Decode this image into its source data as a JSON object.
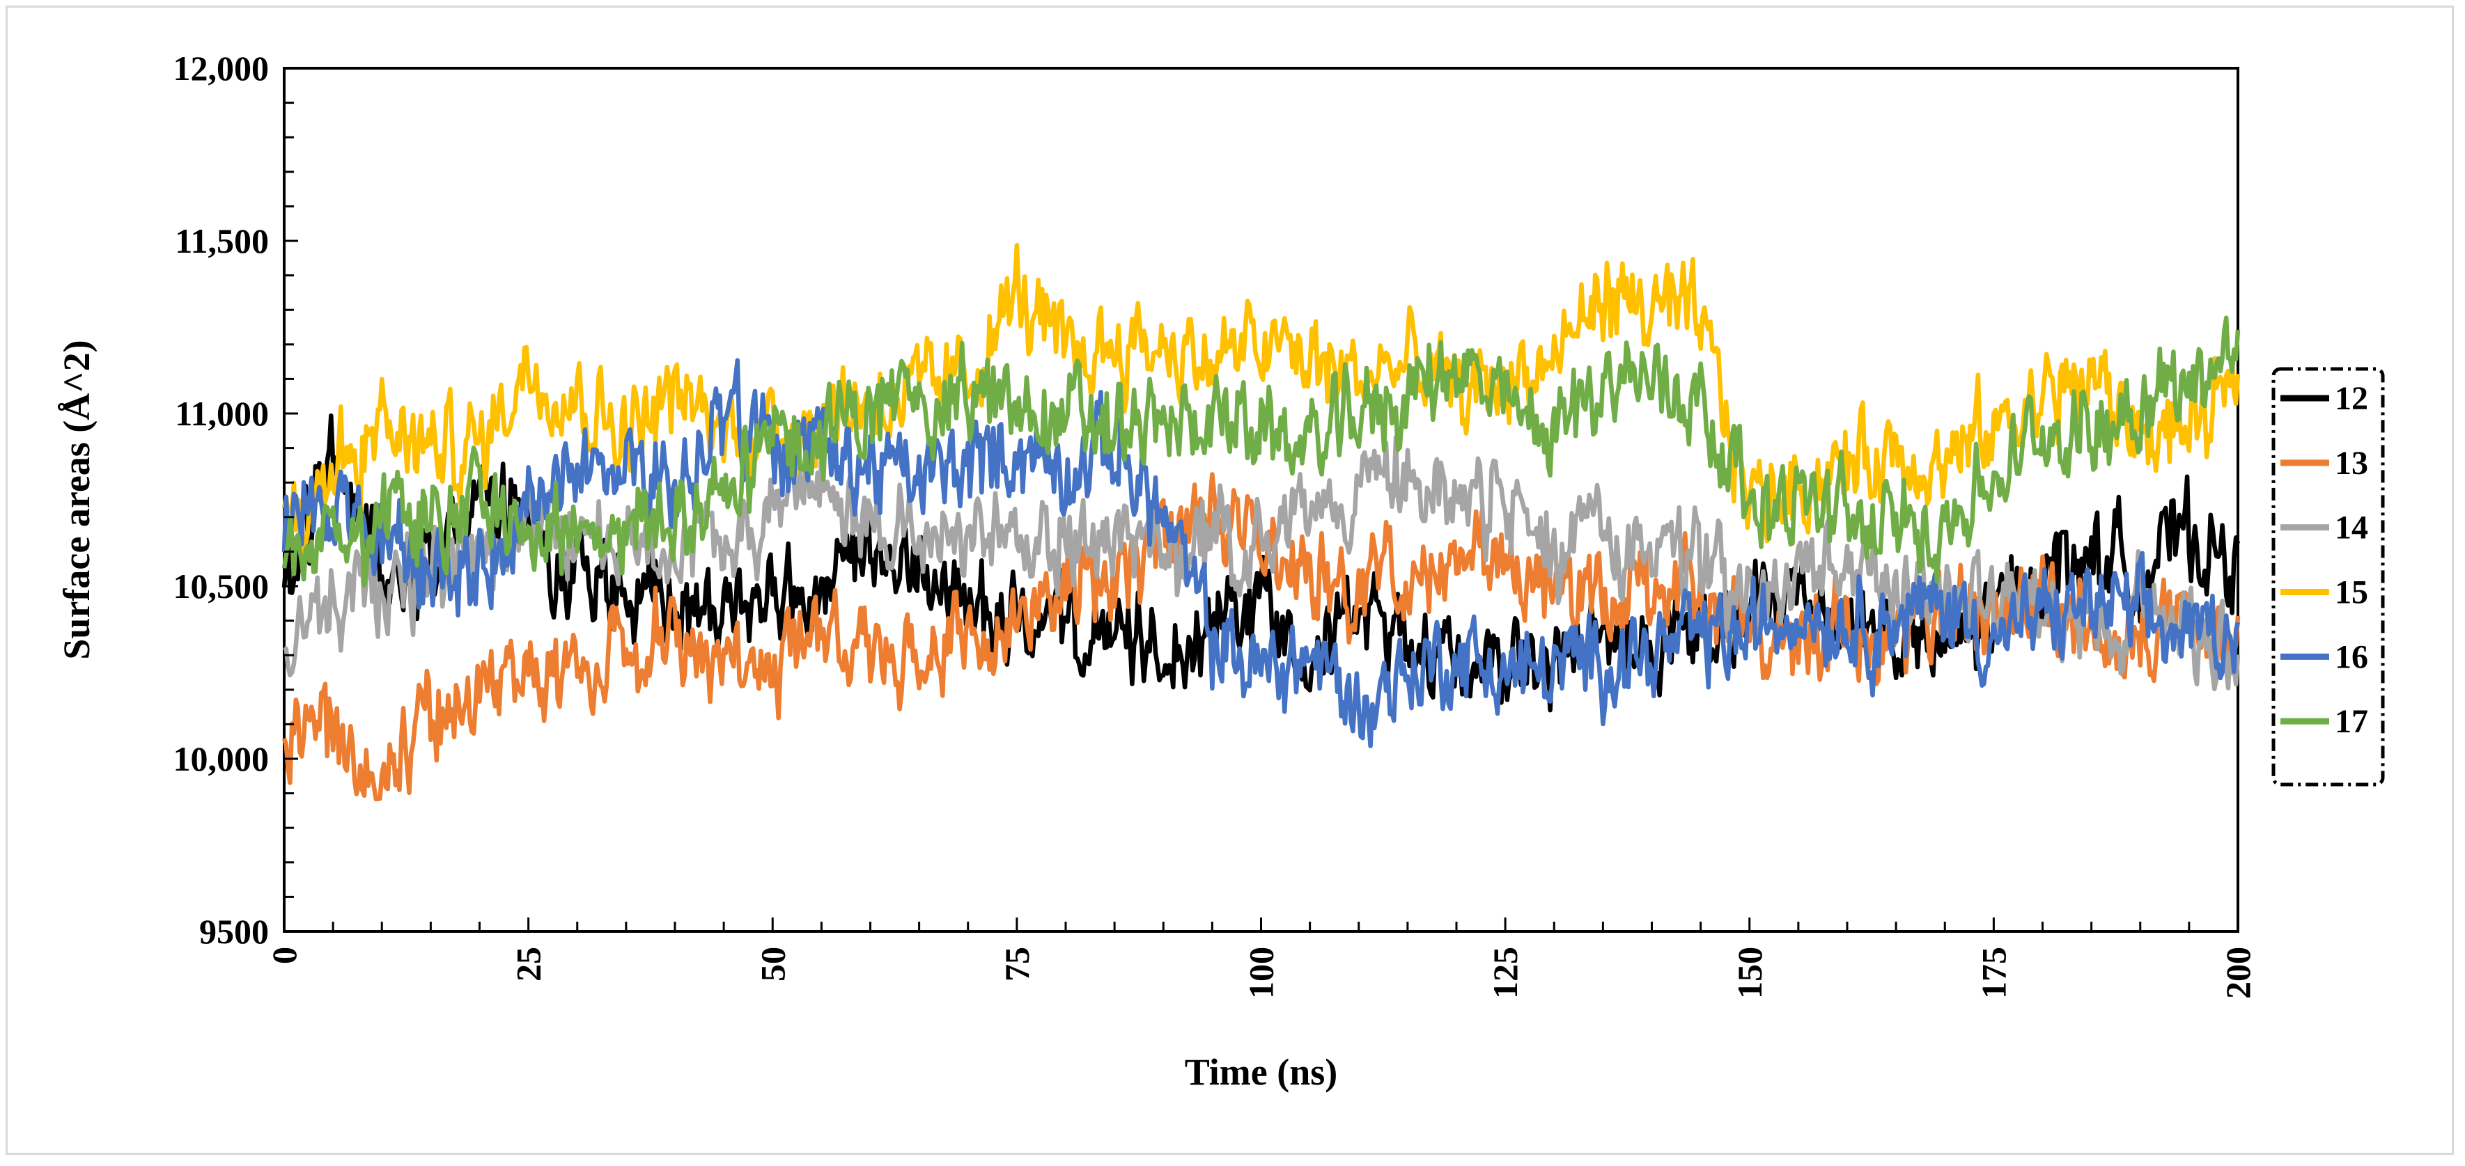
{
  "chart_data": {
    "type": "line",
    "title": "",
    "xlabel": "Time (ns)",
    "ylabel": "Surface areas (Å^2)",
    "xlim": [
      0,
      200
    ],
    "ylim": [
      9500,
      12000
    ],
    "x_ticks": [
      0,
      25,
      50,
      75,
      100,
      125,
      150,
      175,
      200
    ],
    "x_tick_labels": [
      "0",
      "25",
      "50",
      "75",
      "100",
      "125",
      "150",
      "175",
      "200"
    ],
    "y_ticks": [
      9500,
      10000,
      10500,
      11000,
      11500,
      12000
    ],
    "y_tick_labels": [
      "9500",
      "10,000",
      "10,500",
      "11,000",
      "11,500",
      "12,000"
    ],
    "grid": false,
    "legend_position": "right",
    "x": [
      0,
      5,
      10,
      15,
      20,
      25,
      30,
      35,
      40,
      45,
      50,
      55,
      60,
      65,
      70,
      75,
      80,
      85,
      90,
      95,
      100,
      105,
      110,
      115,
      120,
      125,
      130,
      135,
      140,
      145,
      150,
      155,
      160,
      165,
      170,
      175,
      180,
      185,
      190,
      195,
      200
    ],
    "series": [
      {
        "name": "12",
        "color": "#000000",
        "values": [
          10450,
          10900,
          10550,
          10600,
          10750,
          10650,
          10550,
          10450,
          10450,
          10400,
          10500,
          10450,
          10550,
          10550,
          10450,
          10400,
          10350,
          10350,
          10300,
          10400,
          10450,
          10350,
          10400,
          10350,
          10300,
          10300,
          10250,
          10350,
          10300,
          10350,
          10400,
          10500,
          10400,
          10350,
          10300,
          10400,
          10550,
          10600,
          10550,
          10650,
          10550
        ]
      },
      {
        "name": "13",
        "color": "#ED7D31",
        "values": [
          10100,
          10050,
          9950,
          10100,
          10200,
          10250,
          10250,
          10300,
          10350,
          10300,
          10250,
          10400,
          10250,
          10300,
          10350,
          10400,
          10550,
          10500,
          10600,
          10700,
          10650,
          10550,
          10500,
          10550,
          10600,
          10550,
          10500,
          10450,
          10500,
          10500,
          10400,
          10350,
          10400,
          10350,
          10400,
          10400,
          10450,
          10400,
          10400,
          10350,
          10350
        ]
      },
      {
        "name": "14",
        "color": "#A5A5A5",
        "values": [
          10350,
          10450,
          10500,
          10550,
          10550,
          10700,
          10650,
          10600,
          10600,
          10650,
          10700,
          10800,
          10700,
          10650,
          10650,
          10600,
          10650,
          10650,
          10600,
          10600,
          10650,
          10700,
          10800,
          10850,
          10700,
          10750,
          10600,
          10650,
          10600,
          10550,
          10450,
          10500,
          10550,
          10500,
          10500,
          10450,
          10400,
          10400,
          10450,
          10400,
          10350
        ]
      },
      {
        "name": "15",
        "color": "#FFC000",
        "values": [
          10650,
          10850,
          10950,
          10900,
          10900,
          11150,
          11050,
          10950,
          11050,
          10950,
          10950,
          11000,
          11050,
          11050,
          11100,
          11350,
          11150,
          11200,
          11200,
          11150,
          11200,
          11150,
          11100,
          11150,
          11050,
          11100,
          11150,
          11350,
          11300,
          11250,
          10750,
          10800,
          10850,
          10900,
          10850,
          10950,
          11050,
          11100,
          10950,
          10950,
          11050
        ]
      },
      {
        "name": "16",
        "color": "#4472C4",
        "values": [
          10700,
          10750,
          10600,
          10550,
          10550,
          10700,
          10850,
          10800,
          10800,
          10950,
          10950,
          10850,
          10850,
          10800,
          10850,
          10900,
          10850,
          10900,
          10700,
          10350,
          10250,
          10300,
          10150,
          10250,
          10300,
          10250,
          10250,
          10300,
          10300,
          10350,
          10350,
          10450,
          10400,
          10400,
          10450,
          10350,
          10400,
          10450,
          10400,
          10350,
          10400
        ]
      },
      {
        "name": "17",
        "color": "#70AD47",
        "values": [
          10550,
          10600,
          10700,
          10650,
          10800,
          10650,
          10650,
          10700,
          10650,
          10800,
          10900,
          10950,
          11000,
          11050,
          11050,
          11000,
          11000,
          10950,
          10950,
          11000,
          10950,
          10900,
          11000,
          11050,
          11150,
          11000,
          10950,
          11100,
          11100,
          11050,
          10750,
          10750,
          10700,
          10650,
          10700,
          10800,
          10950,
          10950,
          11050,
          11100,
          11200
        ]
      }
    ]
  }
}
